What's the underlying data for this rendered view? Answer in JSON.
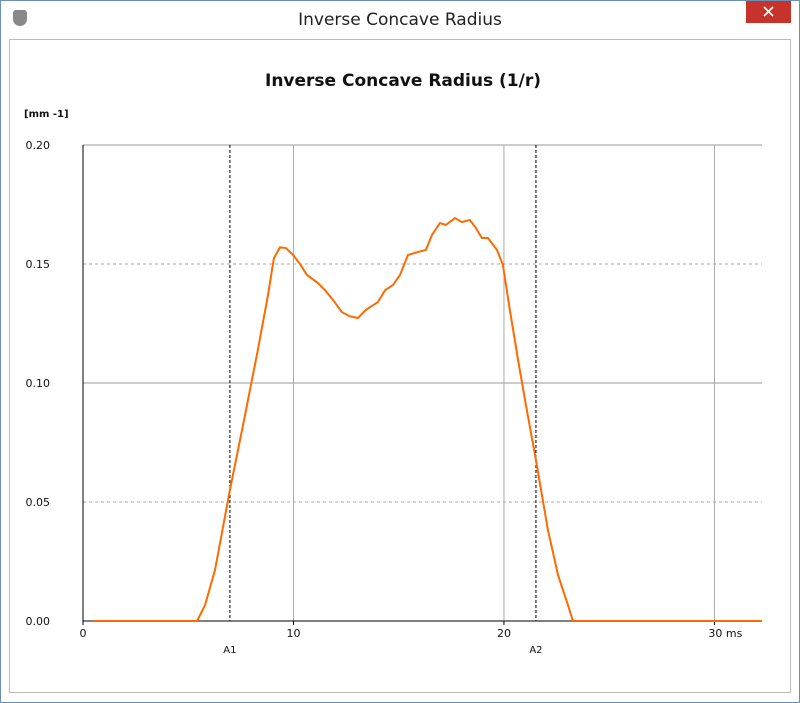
{
  "window": {
    "title": "Inverse Concave Radius"
  },
  "chart_data": {
    "type": "line",
    "title": "Inverse Concave Radius (1/r)",
    "y_label": "[mm -1]",
    "color": "#ff6a00",
    "x": [
      0.47,
      5.42,
      5.8,
      6.27,
      6.98,
      7.7,
      8.31,
      8.79,
      9.07,
      9.36,
      9.64,
      9.98,
      10.31,
      10.64,
      11.16,
      11.5,
      11.88,
      12.3,
      12.68,
      13.06,
      13.44,
      14.01,
      14.35,
      14.73,
      15.06,
      15.44,
      15.91,
      16.29,
      16.58,
      16.96,
      17.24,
      17.67,
      18.0,
      18.38,
      18.67,
      18.95,
      19.24,
      19.67,
      19.95,
      20.28,
      20.67,
      21.0,
      21.52,
      22.09,
      22.57,
      23.04,
      23.28,
      32.26
    ],
    "values": [
      0,
      0,
      0.0067,
      0.0214,
      0.055,
      0.0866,
      0.114,
      0.137,
      0.1525,
      0.157,
      0.1567,
      0.1538,
      0.15,
      0.1454,
      0.142,
      0.139,
      0.1349,
      0.1298,
      0.128,
      0.1273,
      0.1307,
      0.134,
      0.139,
      0.1412,
      0.1454,
      0.1538,
      0.155,
      0.1559,
      0.1622,
      0.1672,
      0.1664,
      0.1693,
      0.1676,
      0.1685,
      0.1651,
      0.1609,
      0.1609,
      0.1559,
      0.1496,
      0.1307,
      0.1097,
      0.0929,
      0.0676,
      0.0382,
      0.0193,
      0.0067,
      0,
      0
    ],
    "xlim": [
      0,
      32.26
    ],
    "ylim": [
      0,
      0.2
    ],
    "xticks": [
      0,
      10,
      20,
      {
        "value": 30,
        "label": "30 ms"
      }
    ],
    "yticks": [
      {
        "value": 0,
        "label": "0.00"
      },
      {
        "value": 0.05,
        "label": "0.05"
      },
      {
        "value": 0.1,
        "label": "0.10"
      },
      {
        "value": 0.15,
        "label": "0.15"
      },
      {
        "value": 0.2,
        "label": "0.20"
      }
    ],
    "grid": true,
    "markers": [
      {
        "label": "A1",
        "x": 6.98
      },
      {
        "label": "A2",
        "x": 21.52
      }
    ]
  }
}
